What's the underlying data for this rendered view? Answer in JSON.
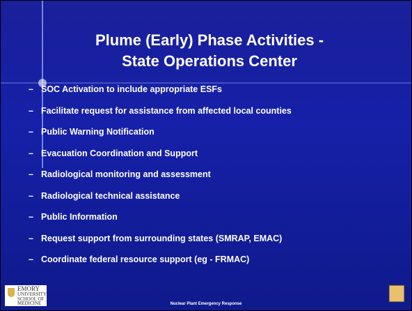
{
  "title": {
    "line1": "Plume (Early) Phase Activities -",
    "line2": "State Operations Center"
  },
  "bullets": [
    "SOC Activation to include appropriate ESFs",
    "Facilitate request for assistance from affected local counties",
    "Public Warning Notification",
    "Evacuation Coordination and Support",
    "Radiological monitoring and assessment",
    "Radiological technical assistance",
    "Public Information",
    "Request support from surrounding states (SMRAP, EMAC)",
    "Coordinate federal resource support (eg - FRMAC)"
  ],
  "bullet_marker": "–",
  "footer": "Nuclear Plant Emergency Response",
  "logo": {
    "line1": "EMORY",
    "line2": "UNIVERSITY",
    "line3": "SCHOOL OF",
    "line4": "MEDICINE"
  }
}
